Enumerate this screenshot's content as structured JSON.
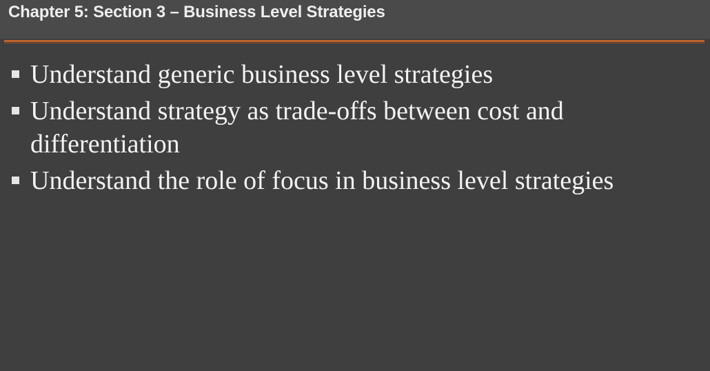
{
  "slide": {
    "title": "Chapter 5: Section 3 – Business Level Strategies",
    "bullets": [
      "Understand generic business level strategies",
      "Understand strategy as trade-offs between cost and differentiation",
      "Understand the role of focus in business level strategies"
    ]
  },
  "colors": {
    "background": "#3f3f3f",
    "header": "#4a4a4a",
    "accent": "#c0622b",
    "text": "#f2f2f2"
  }
}
